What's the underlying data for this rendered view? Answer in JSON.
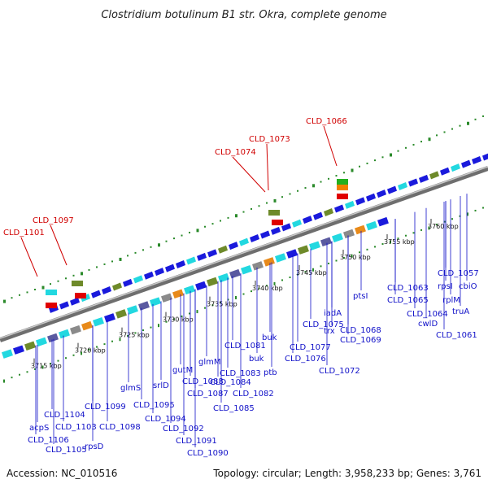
{
  "title": "Clostridium botulinum B1 str. Okra, complete genome",
  "footer": {
    "accession": "Accession: NC_010516",
    "summary": "Topology: circular; Length: 3,958,233 bp; Genes: 3,761"
  },
  "colors": {
    "backbone": "#8a8a8a",
    "gene_label": "#1010c8",
    "highlight_label": "#d00000",
    "dots": "#2a8a2a"
  },
  "ticks": [
    "3715 kbp",
    "3720 kbp",
    "3725 kbp",
    "3730 kbp",
    "3735 kbp",
    "3740 kbp",
    "3745 kbp",
    "3750 kbp",
    "3755 kbp",
    "3760 kbp"
  ],
  "highlight_labels": [
    "CLD_1101",
    "CLD_1097",
    "CLD_1074",
    "CLD_1073",
    "CLD_1066"
  ],
  "gene_labels": [
    "CLD_1104",
    "acpS",
    "CLD_1103",
    "CLD_1106",
    "CLD_1105",
    "rpsD",
    "CLD_1099",
    "CLD_1098",
    "glmS",
    "CLD_1095",
    "CLD_1094",
    "srlD",
    "gutM",
    "CLD_1092",
    "CLD_1091",
    "CLD_1090",
    "CLD_1088",
    "CLD_1087",
    "glmM",
    "CLD_1084",
    "CLD_1083",
    "CLD_1082",
    "CLD_1085",
    "CLD_1081",
    "buk",
    "buk",
    "ptb",
    "CLD_1077",
    "CLD_1075",
    "CLD_1076",
    "trx",
    "iadA",
    "CLD_1068",
    "CLD_1069",
    "CLD_1072",
    "ptsI",
    "CLD_1063",
    "CLD_1065",
    "CLD_1064",
    "rpsI",
    "cwlD",
    "CLD_1057",
    "cbiO",
    "rplM",
    "truA",
    "CLD_1061"
  ]
}
